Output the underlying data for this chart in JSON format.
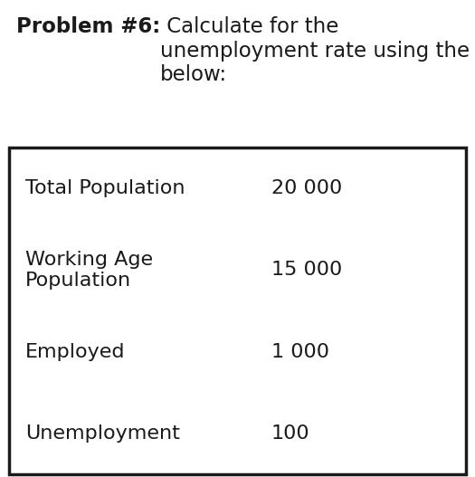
{
  "title_bold": "Problem #6:",
  "title_regular": " Calculate for the\nunemployment rate using the table\nbelow:",
  "rows": [
    {
      "label": "Total Population",
      "value": "20 000"
    },
    {
      "label": "Working Age\nPopulation",
      "value": "15 000"
    },
    {
      "label": "Employed",
      "value": "1 000"
    },
    {
      "label": "Unemployment",
      "value": "100"
    }
  ],
  "background_color": "#ffffff",
  "table_border_color": "#1a1a1a",
  "text_color": "#1a1a1a",
  "title_fontsize": 16.5,
  "table_fontsize": 16.0,
  "fig_width": 5.25,
  "fig_height": 5.27,
  "dpi": 100
}
